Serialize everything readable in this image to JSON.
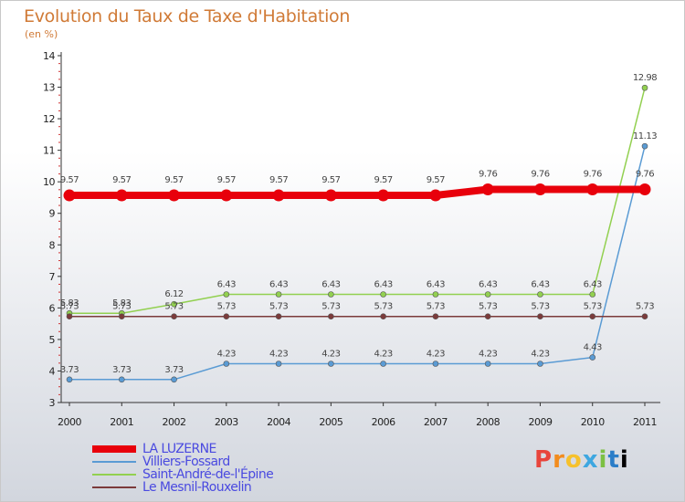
{
  "title": "Evolution du Taux de Taxe d'Habitation",
  "unit": "(en %)",
  "logo": [
    "P",
    "r",
    "o",
    "x",
    "i",
    "t",
    "i"
  ],
  "chart_data": {
    "type": "line",
    "title": "Evolution du Taux de Taxe d'Habitation",
    "ylabel": "(en %)",
    "xlabel": "",
    "ylim": [
      3,
      14
    ],
    "yticks": [
      "3",
      "4",
      "5",
      "6",
      "7",
      "8",
      "9",
      "10",
      "11",
      "12",
      "13",
      "14"
    ],
    "categories": [
      "2000",
      "2001",
      "2002",
      "2003",
      "2004",
      "2005",
      "2006",
      "2007",
      "2008",
      "2009",
      "2010",
      "2011"
    ],
    "series": [
      {
        "name": "LA LUZERNE",
        "color": "#e8000b",
        "values": [
          9.57,
          9.57,
          9.57,
          9.57,
          9.57,
          9.57,
          9.57,
          9.57,
          9.76,
          9.76,
          9.76,
          9.76
        ],
        "labels": [
          "9.57",
          "9.57",
          "9.57",
          "9.57",
          "9.57",
          "9.57",
          "9.57",
          "9.57",
          "9.76",
          "9.76",
          "9.76",
          "9.76"
        ]
      },
      {
        "name": "Villiers-Fossard",
        "color": "#5a9bd4",
        "values": [
          3.73,
          3.73,
          3.73,
          4.23,
          4.23,
          4.23,
          4.23,
          4.23,
          4.23,
          4.23,
          4.43,
          11.13
        ],
        "labels": [
          "3.73",
          "3.73",
          "3.73",
          "4.23",
          "4.23",
          "4.23",
          "4.23",
          "4.23",
          "4.23",
          "4.23",
          "4.43",
          "11.13"
        ]
      },
      {
        "name": "Saint-André-de-l'Épine",
        "color": "#92d050",
        "values": [
          5.83,
          5.83,
          6.12,
          6.43,
          6.43,
          6.43,
          6.43,
          6.43,
          6.43,
          6.43,
          6.43,
          12.98
        ],
        "labels": [
          "5.83",
          "5.83",
          "6.12",
          "6.43",
          "6.43",
          "6.43",
          "6.43",
          "6.43",
          "6.43",
          "6.43",
          "6.43",
          "12.98"
        ]
      },
      {
        "name": "Le Mesnil-Rouxelin",
        "color": "#7b3b3b",
        "values": [
          5.73,
          5.73,
          5.73,
          5.73,
          5.73,
          5.73,
          5.73,
          5.73,
          5.73,
          5.73,
          5.73,
          5.73
        ],
        "labels": [
          "5.73",
          "5.73",
          "5.73",
          "5.73",
          "5.73",
          "5.73",
          "5.73",
          "5.73",
          "5.73",
          "5.73",
          "5.73",
          "5.73"
        ]
      }
    ]
  }
}
